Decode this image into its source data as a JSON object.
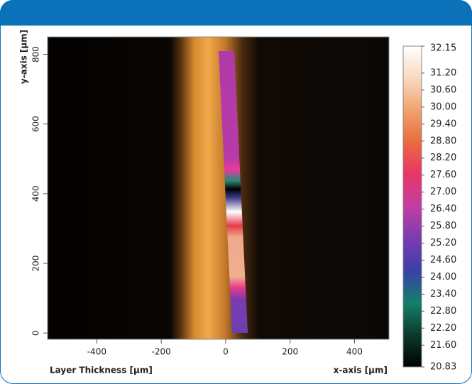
{
  "chart_data": {
    "type": "image",
    "caption": "Layer Thickness [µm]",
    "x_label": "x-axis [µm]",
    "y_label": "y-axis [µm]",
    "xlim": [
      -553,
      507
    ],
    "xticks": [
      -400,
      -200,
      0,
      200,
      400
    ],
    "ylim": [
      -18,
      850
    ],
    "yticks": [
      0,
      200,
      400,
      600,
      800
    ],
    "colorbar": {
      "lim": [
        20.83,
        32.15
      ],
      "colors": [
        "#000000",
        "#0b3b2c",
        "#14806a",
        "#3b3fa8",
        "#7a3cb2",
        "#c23ea2",
        "#e8356a",
        "#ea6a3e",
        "#f0a26e",
        "#f8d9c0",
        "#ffffff"
      ],
      "ticks": [
        32.15,
        {
          "value": 31.2,
          "label": "31.20"
        },
        {
          "value": 30.6,
          "label": "30.60"
        },
        {
          "value": 30.0,
          "label": "30.00"
        },
        {
          "value": 29.4,
          "label": "29.40"
        },
        {
          "value": 28.8,
          "label": "28.80"
        },
        {
          "value": 28.2,
          "label": "28.20"
        },
        {
          "value": 27.6,
          "label": "27.60"
        },
        {
          "value": 27.0,
          "label": "27.00"
        },
        {
          "value": 26.4,
          "label": "26.40"
        },
        {
          "value": 25.8,
          "label": "25.80"
        },
        {
          "value": 25.2,
          "label": "25.20"
        },
        {
          "value": 24.6,
          "label": "24.60"
        },
        {
          "value": 24.0,
          "label": "24.00"
        },
        {
          "value": 23.4,
          "label": "23.40"
        },
        {
          "value": 22.8,
          "label": "22.80"
        },
        {
          "value": 22.2,
          "label": "22.20"
        },
        {
          "value": 21.6,
          "label": "21.60"
        },
        20.83
      ]
    }
  }
}
